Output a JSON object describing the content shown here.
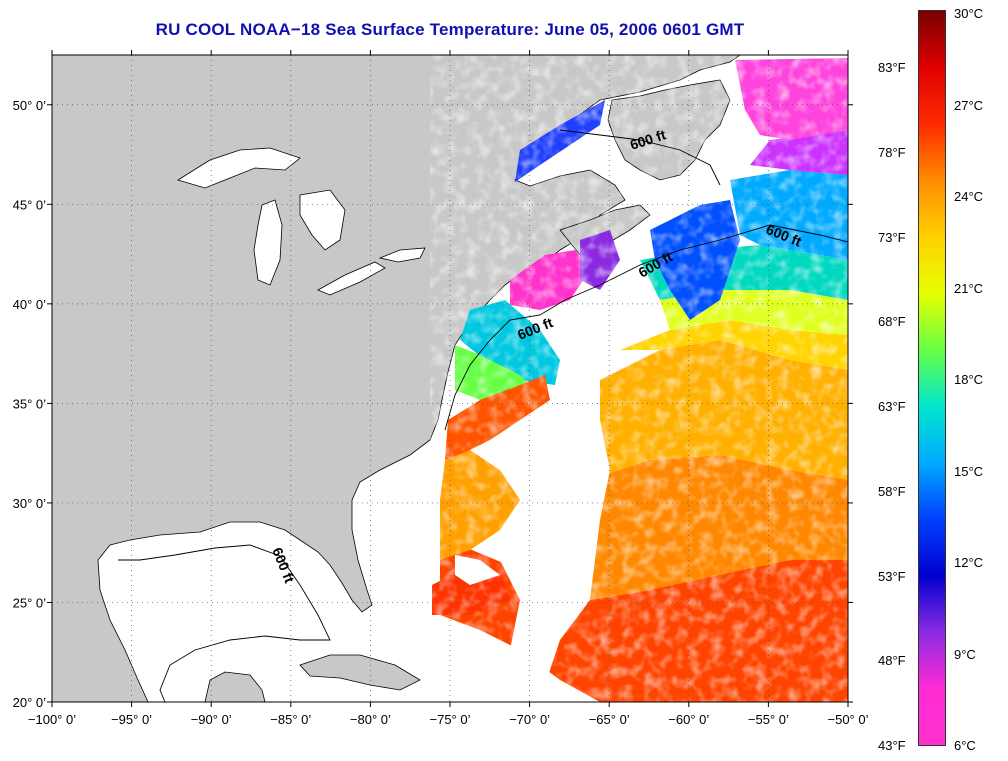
{
  "title": "RU COOL  NOAA−18  Sea Surface Temperature:  June 05, 2006 0601 GMT",
  "map": {
    "lon_range": [
      -100,
      -50
    ],
    "lat_range": [
      20,
      52.5
    ],
    "lat_ticks": [
      {
        "value": 20,
        "label": "20° 0’"
      },
      {
        "value": 25,
        "label": "25° 0’"
      },
      {
        "value": 30,
        "label": "30° 0’"
      },
      {
        "value": 35,
        "label": "35° 0’"
      },
      {
        "value": 40,
        "label": "40° 0’"
      },
      {
        "value": 45,
        "label": "45° 0’"
      },
      {
        "value": 50,
        "label": "50° 0’"
      }
    ],
    "lon_ticks": [
      {
        "value": -100,
        "label": "−100° 0’"
      },
      {
        "value": -95,
        "label": "−95° 0’"
      },
      {
        "value": -90,
        "label": "−90° 0’"
      },
      {
        "value": -85,
        "label": "−85° 0’"
      },
      {
        "value": -80,
        "label": "−80° 0’"
      },
      {
        "value": -75,
        "label": "−75° 0’"
      },
      {
        "value": -70,
        "label": "−70° 0’"
      },
      {
        "value": -65,
        "label": "−65° 0’"
      },
      {
        "value": -60,
        "label": "−60° 0’"
      },
      {
        "value": -55,
        "label": "−55° 0’"
      },
      {
        "value": -50,
        "label": "−50° 0’"
      }
    ],
    "contour_labels": [
      "600 ft",
      "600 ft",
      "600 ft",
      "600 ft",
      "600 ft"
    ],
    "colors": {
      "land": "#c8c8c8",
      "ocean_no_data": "#ffffff",
      "grid": "#555555"
    }
  },
  "colorbar": {
    "range_c": [
      6,
      30
    ],
    "celsius_labels": [
      "30°C",
      "27°C",
      "24°C",
      "21°C",
      "18°C",
      "15°C",
      "12°C",
      "9°C",
      "6°C"
    ],
    "fahrenheit_labels": [
      "83°F",
      "78°F",
      "73°F",
      "68°F",
      "63°F",
      "58°F",
      "53°F",
      "48°F",
      "43°F"
    ],
    "gradient_stops": [
      "#7a0000",
      "#e00000",
      "#ff2a00",
      "#ff8c00",
      "#ffd000",
      "#e8ff00",
      "#66ff44",
      "#00e6cc",
      "#00aaff",
      "#0040ff",
      "#0000d0",
      "#8a2be2",
      "#ff2bd5",
      "#ff33cc"
    ]
  }
}
